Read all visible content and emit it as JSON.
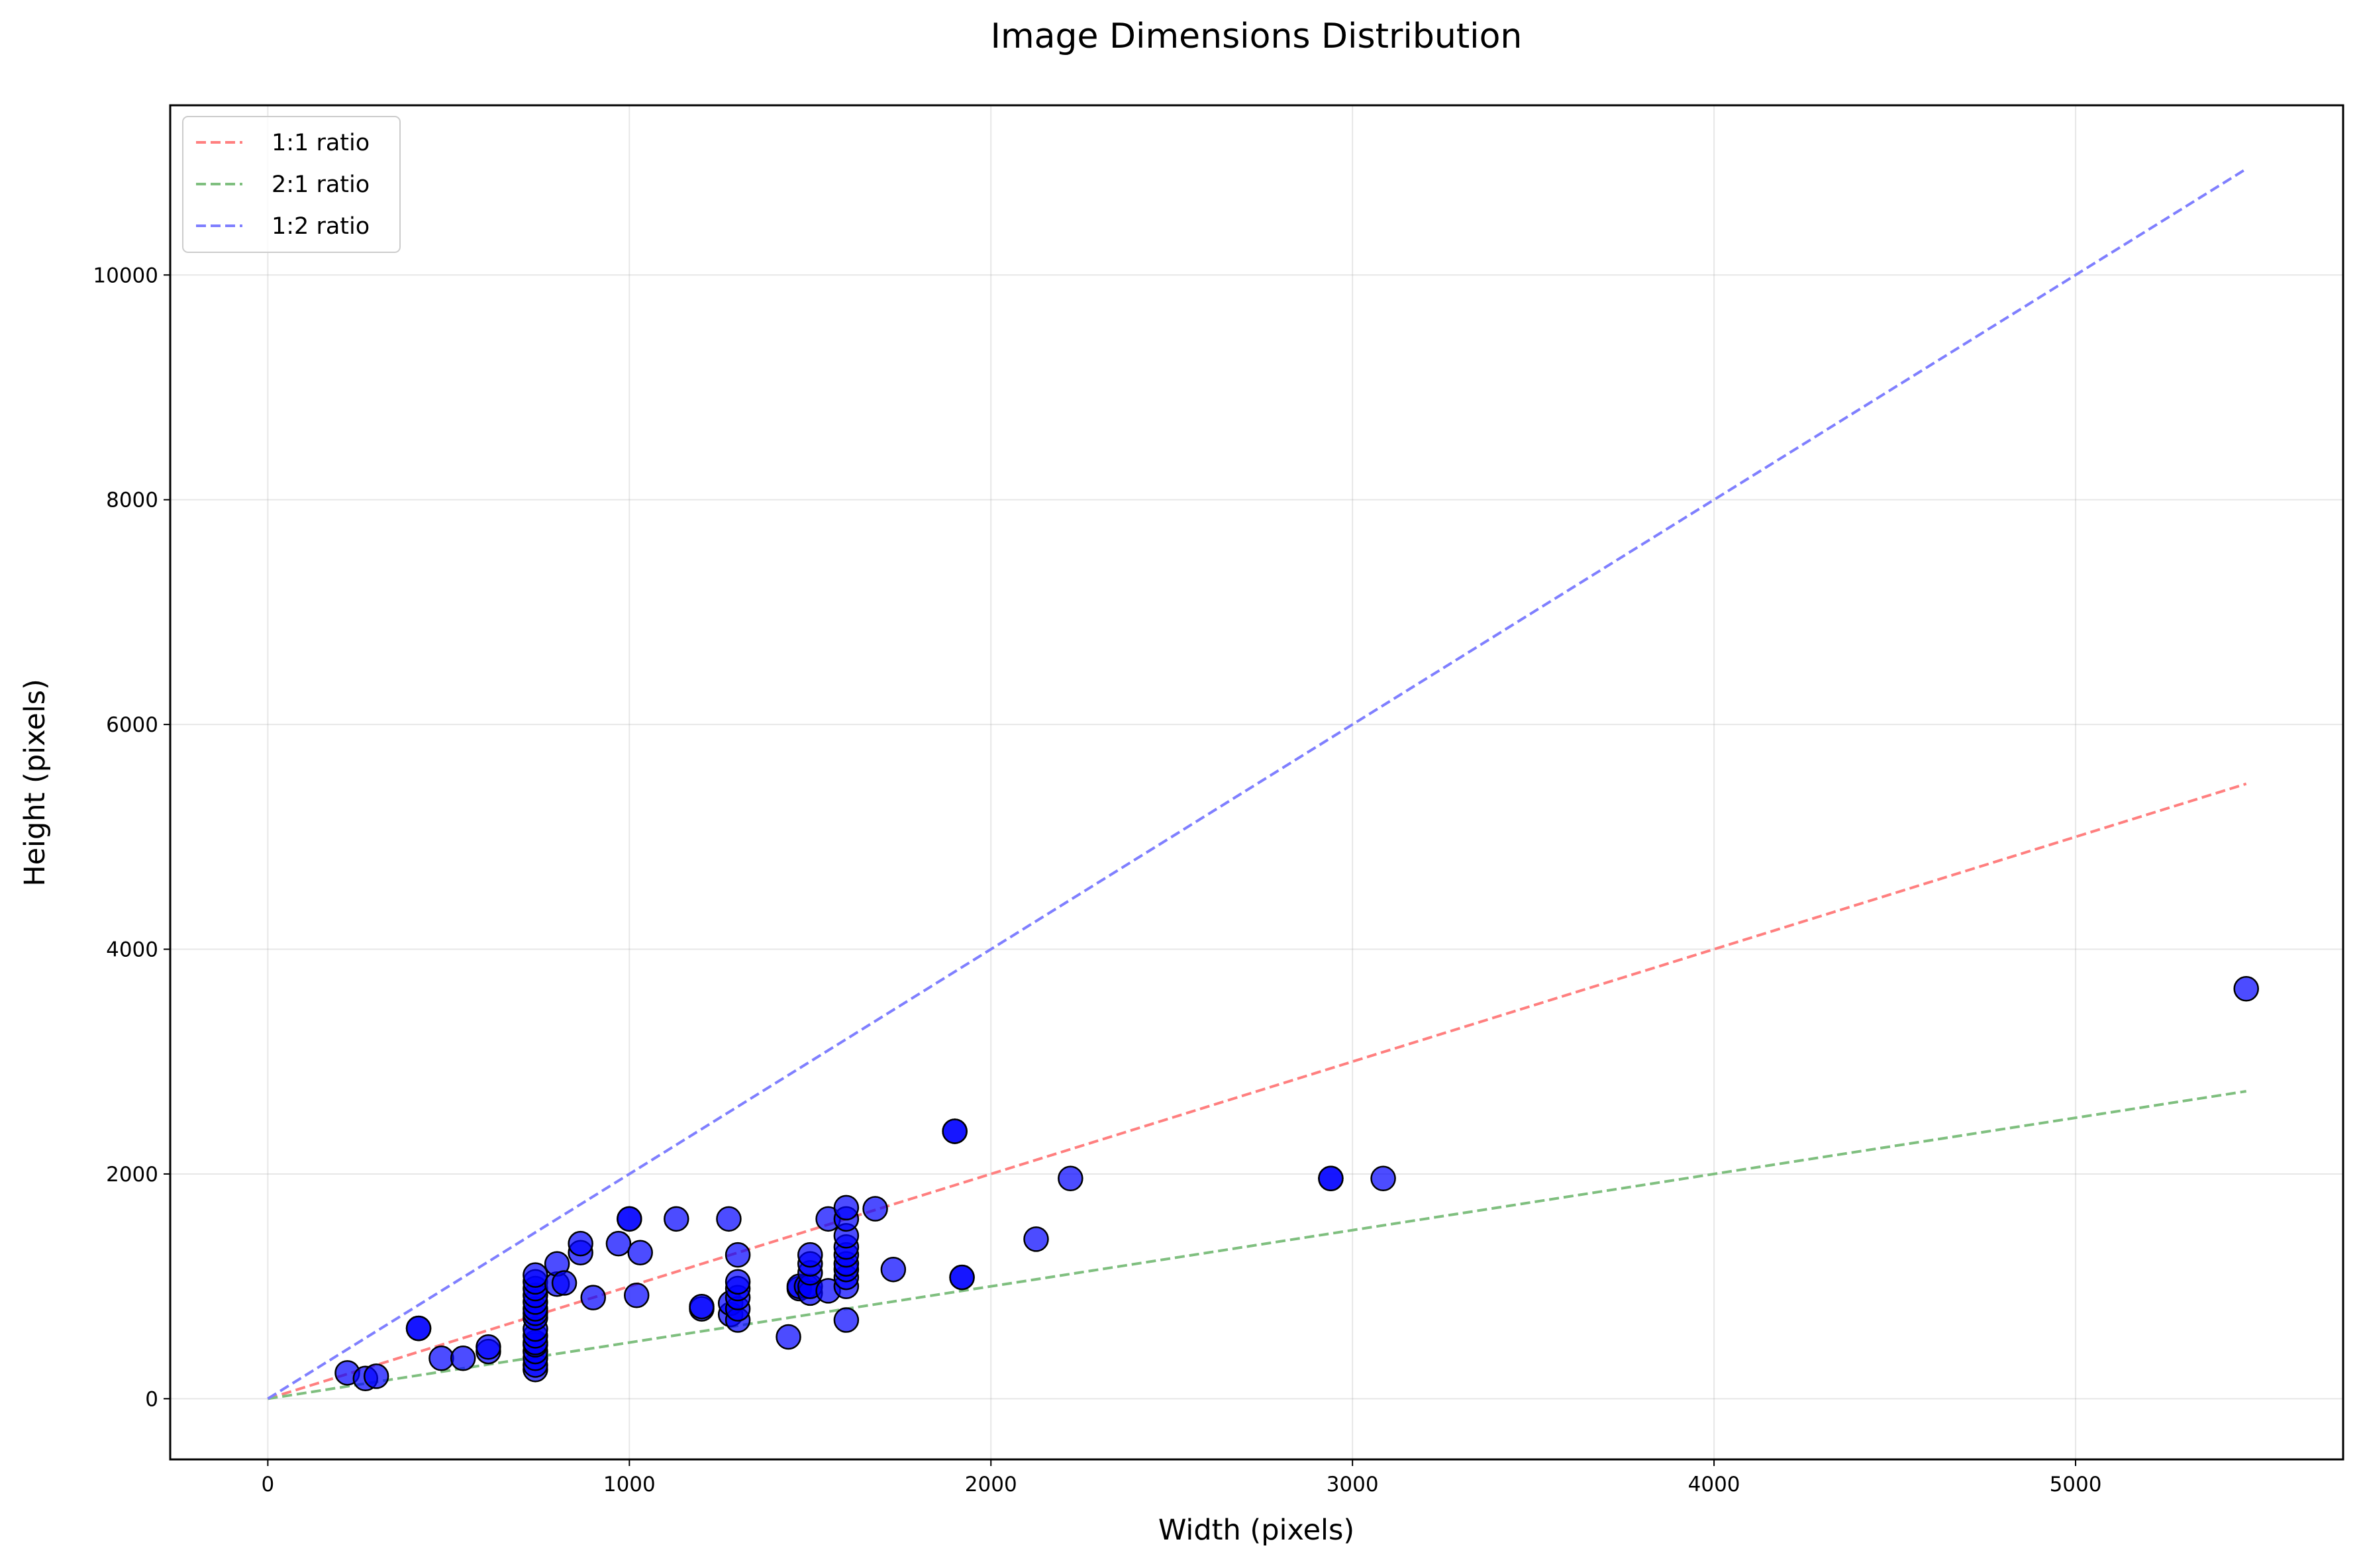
{
  "chart_data": {
    "type": "scatter",
    "title": "Image Dimensions Distribution",
    "xlabel": "Width (pixels)",
    "ylabel": "Height (pixels)",
    "xlim": [
      -270,
      5740
    ],
    "ylim": [
      -540,
      11510
    ],
    "xticks": [
      0,
      1000,
      2000,
      3000,
      4000,
      5000
    ],
    "yticks": [
      0,
      2000,
      4000,
      6000,
      8000,
      10000
    ],
    "grid": true,
    "legend_position": "top-left",
    "point_color": "#0000ff",
    "point_edge_color": "#000000",
    "reference_lines": [
      {
        "name": "1:1 ratio",
        "slope": 1,
        "x_range": [
          0,
          5472
        ],
        "color": "#ff7f7f"
      },
      {
        "name": "2:1 ratio",
        "slope": 0.5,
        "x_range": [
          0,
          5472
        ],
        "color": "#7fbf7f"
      },
      {
        "name": "1:2 ratio",
        "slope": 2,
        "x_range": [
          0,
          5472
        ],
        "color": "#7f7fff"
      }
    ],
    "series": [
      {
        "points": [
          [
            220,
            230
          ],
          [
            270,
            180
          ],
          [
            300,
            200
          ],
          [
            417,
            626
          ],
          [
            417,
            626
          ],
          [
            480,
            360
          ],
          [
            540,
            360
          ],
          [
            610,
            420
          ],
          [
            610,
            460
          ],
          [
            740,
            260
          ],
          [
            740,
            300
          ],
          [
            740,
            360
          ],
          [
            740,
            420
          ],
          [
            740,
            480
          ],
          [
            740,
            500
          ],
          [
            740,
            560
          ],
          [
            740,
            620
          ],
          [
            740,
            720
          ],
          [
            740,
            760
          ],
          [
            740,
            800
          ],
          [
            740,
            860
          ],
          [
            740,
            920
          ],
          [
            740,
            980
          ],
          [
            740,
            1040
          ],
          [
            740,
            1100
          ],
          [
            800,
            1020
          ],
          [
            800,
            1200
          ],
          [
            820,
            1030
          ],
          [
            865,
            1300
          ],
          [
            865,
            1380
          ],
          [
            900,
            900
          ],
          [
            970,
            1380
          ],
          [
            1000,
            1600
          ],
          [
            1000,
            1600
          ],
          [
            1020,
            920
          ],
          [
            1030,
            1300
          ],
          [
            1130,
            1600
          ],
          [
            1200,
            800
          ],
          [
            1200,
            820
          ],
          [
            1275,
            1600
          ],
          [
            1280,
            750
          ],
          [
            1280,
            850
          ],
          [
            1300,
            700
          ],
          [
            1300,
            800
          ],
          [
            1300,
            900
          ],
          [
            1300,
            980
          ],
          [
            1300,
            1040
          ],
          [
            1300,
            1280
          ],
          [
            1440,
            550
          ],
          [
            1470,
            980
          ],
          [
            1470,
            1000
          ],
          [
            1490,
            1000
          ],
          [
            1500,
            940
          ],
          [
            1500,
            1000
          ],
          [
            1500,
            1120
          ],
          [
            1500,
            1200
          ],
          [
            1500,
            1280
          ],
          [
            1550,
            960
          ],
          [
            1550,
            1600
          ],
          [
            1600,
            700
          ],
          [
            1600,
            1000
          ],
          [
            1600,
            1080
          ],
          [
            1600,
            1150
          ],
          [
            1600,
            1200
          ],
          [
            1600,
            1280
          ],
          [
            1600,
            1350
          ],
          [
            1600,
            1450
          ],
          [
            1600,
            1600
          ],
          [
            1600,
            1700
          ],
          [
            1680,
            1690
          ],
          [
            1730,
            1150
          ],
          [
            1900,
            2380
          ],
          [
            1900,
            2380
          ],
          [
            1920,
            1080
          ],
          [
            1920,
            1080
          ],
          [
            2125,
            1420
          ],
          [
            2220,
            1960
          ],
          [
            2940,
            1960
          ],
          [
            2940,
            1960
          ],
          [
            3085,
            1960
          ],
          [
            5472,
            3648
          ]
        ]
      }
    ]
  }
}
